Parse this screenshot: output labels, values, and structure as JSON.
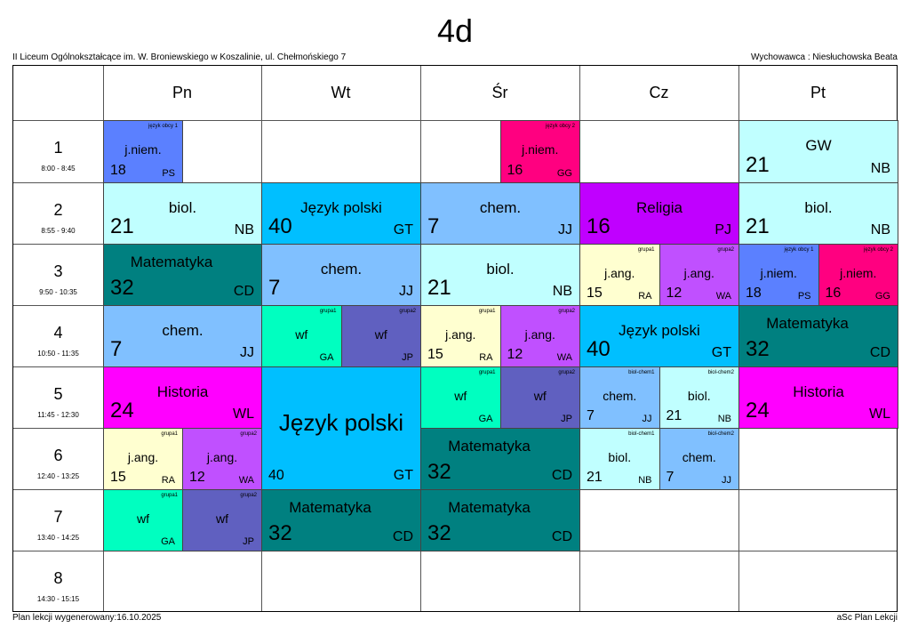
{
  "header": {
    "title": "4d",
    "school": "II Liceum Ogólnokształcące im. W. Broniewskiego w Koszalinie, ul. Chełmońskiego 7",
    "class_teacher": "Wychowawca : Niesłuchowska Beata"
  },
  "footer": {
    "generated": "Plan lekcji wygenerowany:16.10.2025",
    "app": "aSc Plan Lekcji"
  },
  "days": [
    "Pn",
    "Wt",
    "Śr",
    "Cz",
    "Pt"
  ],
  "periods": [
    {
      "n": "1",
      "time": "8:00 - 8:45"
    },
    {
      "n": "2",
      "time": "8:55 - 9:40"
    },
    {
      "n": "3",
      "time": "9:50 - 10:35"
    },
    {
      "n": "4",
      "time": "10:50 - 11:35"
    },
    {
      "n": "5",
      "time": "11:45 - 12:30"
    },
    {
      "n": "6",
      "time": "12:40 - 13:25"
    },
    {
      "n": "7",
      "time": "13:40 - 14:25"
    },
    {
      "n": "8",
      "time": "14:30 - 15:15"
    }
  ],
  "colors": {
    "niem1": "#5b80ff",
    "niem2": "#ff0080",
    "bio": "#c0ffff",
    "pol": "#00bfff",
    "chem": "#80c0ff",
    "rel": "#c000ff",
    "mat": "#008080",
    "ang1": "#ffffd0",
    "ang2": "#c050ff",
    "wf1": "#00ffc0",
    "wf2": "#6060c0",
    "his": "#ff00ff"
  },
  "lessons": [
    {
      "day": 0,
      "period": 1,
      "span": 1,
      "part": 1,
      "parts": 2,
      "subject": "j.niem.",
      "room": "18",
      "teacher": "PS",
      "group": "język obcy 1",
      "color": "niem1"
    },
    {
      "day": 0,
      "period": 2,
      "span": 1,
      "subject": "biol.",
      "room": "21",
      "teacher": "NB",
      "color": "bio"
    },
    {
      "day": 0,
      "period": 3,
      "span": 1,
      "subject": "Matematyka",
      "room": "32",
      "teacher": "CD",
      "color": "mat"
    },
    {
      "day": 0,
      "period": 4,
      "span": 1,
      "subject": "chem.",
      "room": "7",
      "teacher": "JJ",
      "color": "chem"
    },
    {
      "day": 0,
      "period": 5,
      "span": 1,
      "subject": "Historia",
      "room": "24",
      "teacher": "WL",
      "color": "his"
    },
    {
      "day": 0,
      "period": 6,
      "span": 1,
      "part": 1,
      "parts": 2,
      "subject": "j.ang.",
      "room": "15",
      "teacher": "RA",
      "group": "grupa1",
      "color": "ang1"
    },
    {
      "day": 0,
      "period": 6,
      "span": 1,
      "part": 2,
      "parts": 2,
      "subject": "j.ang.",
      "room": "12",
      "teacher": "WA",
      "group": "grupa2",
      "color": "ang2"
    },
    {
      "day": 0,
      "period": 7,
      "span": 1,
      "part": 1,
      "parts": 2,
      "subject": "wf",
      "room": "",
      "teacher": "GA",
      "group": "grupa1",
      "color": "wf1"
    },
    {
      "day": 0,
      "period": 7,
      "span": 1,
      "part": 2,
      "parts": 2,
      "subject": "wf",
      "room": "",
      "teacher": "JP",
      "group": "grupa2",
      "color": "wf2"
    },
    {
      "day": 1,
      "period": 2,
      "span": 1,
      "subject": "Język polski",
      "room": "40",
      "teacher": "GT",
      "color": "pol"
    },
    {
      "day": 1,
      "period": 3,
      "span": 1,
      "subject": "chem.",
      "room": "7",
      "teacher": "JJ",
      "color": "chem"
    },
    {
      "day": 1,
      "period": 4,
      "span": 1,
      "part": 1,
      "parts": 2,
      "subject": "wf",
      "room": "",
      "teacher": "GA",
      "group": "grupa1",
      "color": "wf1"
    },
    {
      "day": 1,
      "period": 4,
      "span": 1,
      "part": 2,
      "parts": 2,
      "subject": "wf",
      "room": "",
      "teacher": "JP",
      "group": "grupa2",
      "color": "wf2"
    },
    {
      "day": 1,
      "period": 5,
      "span": 2,
      "subject": "Język polski",
      "room": "40",
      "teacher": "GT",
      "color": "pol"
    },
    {
      "day": 1,
      "period": 7,
      "span": 1,
      "subject": "Matematyka",
      "room": "32",
      "teacher": "CD",
      "color": "mat"
    },
    {
      "day": 2,
      "period": 1,
      "span": 1,
      "part": 2,
      "parts": 2,
      "subject": "j.niem.",
      "room": "16",
      "teacher": "GG",
      "group": "język obcy 2",
      "color": "niem2"
    },
    {
      "day": 2,
      "period": 2,
      "span": 1,
      "subject": "chem.",
      "room": "7",
      "teacher": "JJ",
      "color": "chem"
    },
    {
      "day": 2,
      "period": 3,
      "span": 1,
      "subject": "biol.",
      "room": "21",
      "teacher": "NB",
      "color": "bio"
    },
    {
      "day": 2,
      "period": 4,
      "span": 1,
      "part": 1,
      "parts": 2,
      "subject": "j.ang.",
      "room": "15",
      "teacher": "RA",
      "group": "grupa1",
      "color": "ang1"
    },
    {
      "day": 2,
      "period": 4,
      "span": 1,
      "part": 2,
      "parts": 2,
      "subject": "j.ang.",
      "room": "12",
      "teacher": "WA",
      "group": "grupa2",
      "color": "ang2"
    },
    {
      "day": 2,
      "period": 5,
      "span": 1,
      "part": 1,
      "parts": 2,
      "subject": "wf",
      "room": "",
      "teacher": "GA",
      "group": "grupa1",
      "color": "wf1"
    },
    {
      "day": 2,
      "period": 5,
      "span": 1,
      "part": 2,
      "parts": 2,
      "subject": "wf",
      "room": "",
      "teacher": "JP",
      "group": "grupa2",
      "color": "wf2"
    },
    {
      "day": 2,
      "period": 6,
      "span": 1,
      "subject": "Matematyka",
      "room": "32",
      "teacher": "CD",
      "color": "mat"
    },
    {
      "day": 2,
      "period": 7,
      "span": 1,
      "subject": "Matematyka",
      "room": "32",
      "teacher": "CD",
      "color": "mat"
    },
    {
      "day": 3,
      "period": 2,
      "span": 1,
      "subject": "Religia",
      "room": "16",
      "teacher": "PJ",
      "color": "rel"
    },
    {
      "day": 3,
      "period": 3,
      "span": 1,
      "part": 1,
      "parts": 2,
      "subject": "j.ang.",
      "room": "15",
      "teacher": "RA",
      "group": "grupa1",
      "color": "ang1"
    },
    {
      "day": 3,
      "period": 3,
      "span": 1,
      "part": 2,
      "parts": 2,
      "subject": "j.ang.",
      "room": "12",
      "teacher": "WA",
      "group": "grupa2",
      "color": "ang2"
    },
    {
      "day": 3,
      "period": 4,
      "span": 1,
      "subject": "Język polski",
      "room": "40",
      "teacher": "GT",
      "color": "pol"
    },
    {
      "day": 3,
      "period": 5,
      "span": 1,
      "part": 1,
      "parts": 2,
      "subject": "chem.",
      "room": "7",
      "teacher": "JJ",
      "group": "biol-chem1",
      "color": "chem"
    },
    {
      "day": 3,
      "period": 5,
      "span": 1,
      "part": 2,
      "parts": 2,
      "subject": "biol.",
      "room": "21",
      "teacher": "NB",
      "group": "biol-chem2",
      "color": "bio"
    },
    {
      "day": 3,
      "period": 6,
      "span": 1,
      "part": 1,
      "parts": 2,
      "subject": "biol.",
      "room": "21",
      "teacher": "NB",
      "group": "biol-chem1",
      "color": "bio"
    },
    {
      "day": 3,
      "period": 6,
      "span": 1,
      "part": 2,
      "parts": 2,
      "subject": "chem.",
      "room": "7",
      "teacher": "JJ",
      "group": "biol-chem2",
      "color": "chem"
    },
    {
      "day": 4,
      "period": 1,
      "span": 1,
      "subject": "GW",
      "room": "21",
      "teacher": "NB",
      "color": "bio"
    },
    {
      "day": 4,
      "period": 2,
      "span": 1,
      "subject": "biol.",
      "room": "21",
      "teacher": "NB",
      "color": "bio"
    },
    {
      "day": 4,
      "period": 3,
      "span": 1,
      "part": 1,
      "parts": 2,
      "subject": "j.niem.",
      "room": "18",
      "teacher": "PS",
      "group": "język obcy 1",
      "color": "niem1"
    },
    {
      "day": 4,
      "period": 3,
      "span": 1,
      "part": 2,
      "parts": 2,
      "subject": "j.niem.",
      "room": "16",
      "teacher": "GG",
      "group": "język obcy 2",
      "color": "niem2"
    },
    {
      "day": 4,
      "period": 4,
      "span": 1,
      "subject": "Matematyka",
      "room": "32",
      "teacher": "CD",
      "color": "mat"
    },
    {
      "day": 4,
      "period": 5,
      "span": 1,
      "subject": "Historia",
      "room": "24",
      "teacher": "WL",
      "color": "his"
    }
  ]
}
